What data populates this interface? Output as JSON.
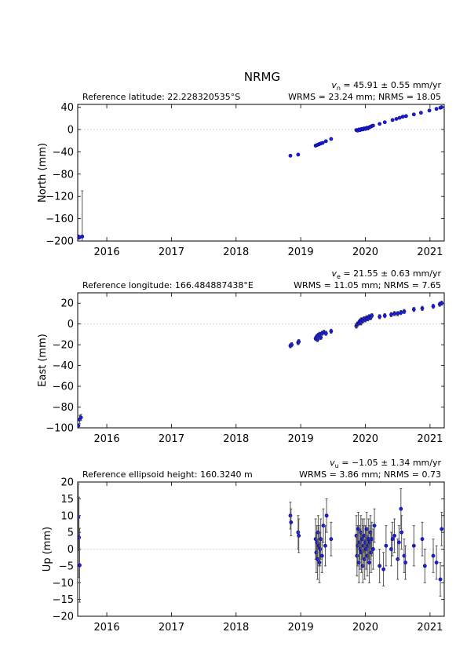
{
  "station": "NRMG",
  "x_ticks": [
    "2016",
    "2017",
    "2018",
    "2019",
    "2020",
    "2021"
  ],
  "colors": {
    "marker_fill": "#1f1fd6",
    "marker_edge": "#00008b",
    "errorbar": "#555555",
    "zero_line": "#cccccc"
  },
  "chart_data": [
    {
      "type": "scatter",
      "component": "north",
      "ylabel": "North (mm)",
      "reference_text": "Reference latitude: 22.228320535°S",
      "velocity": {
        "symbol": "v",
        "sub": "n",
        "text": " = 45.91 ± 0.55 mm/yr"
      },
      "stats_text": "WRMS = 23.24 mm; NRMS = 18.05",
      "ylim": [
        -200,
        45
      ],
      "yticks": [
        40,
        0,
        -40,
        -80,
        -120,
        -160,
        -200
      ],
      "ytick_labels": [
        "40",
        "0",
        "−40",
        "−80",
        "−120",
        "−160",
        "−200"
      ],
      "xlim": [
        2015.55,
        2021.22
      ],
      "grid": false,
      "zero_line": true,
      "points": [
        [
          2015.56,
          -192,
          1
        ],
        [
          2015.57,
          -194,
          1
        ],
        [
          2015.58,
          -193,
          1
        ],
        [
          2015.62,
          -192,
          82
        ],
        [
          2018.84,
          -47,
          1
        ],
        [
          2018.96,
          -45,
          1
        ],
        [
          2019.23,
          -29,
          1
        ],
        [
          2019.25,
          -28,
          1
        ],
        [
          2019.27,
          -27,
          1
        ],
        [
          2019.29,
          -26,
          1
        ],
        [
          2019.31,
          -25,
          1
        ],
        [
          2019.34,
          -24,
          1
        ],
        [
          2019.39,
          -21,
          1
        ],
        [
          2019.47,
          -17,
          1
        ],
        [
          2019.86,
          -1,
          1
        ],
        [
          2019.88,
          -2,
          1
        ],
        [
          2019.9,
          0,
          1
        ],
        [
          2019.92,
          -1,
          1
        ],
        [
          2019.94,
          1,
          1
        ],
        [
          2019.96,
          0,
          1
        ],
        [
          2019.98,
          2,
          1
        ],
        [
          2020.0,
          1,
          1
        ],
        [
          2020.02,
          3,
          1
        ],
        [
          2020.04,
          2,
          1
        ],
        [
          2020.06,
          4,
          1
        ],
        [
          2020.08,
          5,
          1
        ],
        [
          2020.1,
          6,
          1
        ],
        [
          2020.12,
          7,
          1
        ],
        [
          2020.22,
          10,
          1
        ],
        [
          2020.3,
          13,
          1
        ],
        [
          2020.42,
          17,
          1
        ],
        [
          2020.48,
          19,
          1
        ],
        [
          2020.53,
          21,
          1
        ],
        [
          2020.58,
          23,
          1
        ],
        [
          2020.63,
          24,
          1
        ],
        [
          2020.75,
          27,
          1
        ],
        [
          2020.86,
          30,
          1
        ],
        [
          2020.99,
          34,
          1
        ],
        [
          2021.1,
          37,
          1
        ],
        [
          2021.16,
          39,
          1
        ],
        [
          2021.18,
          40,
          1
        ]
      ]
    },
    {
      "type": "scatter",
      "component": "east",
      "ylabel": "East (mm)",
      "reference_text": "Reference longitude: 166.484887438°E",
      "velocity": {
        "symbol": "v",
        "sub": "e",
        "text": " = 21.55 ± 0.63 mm/yr"
      },
      "stats_text": "WRMS = 11.05 mm; NRMS = 7.65",
      "ylim": [
        -100,
        30
      ],
      "yticks": [
        20,
        0,
        -20,
        -40,
        -60,
        -80,
        -100
      ],
      "ytick_labels": [
        "20",
        "0",
        "−20",
        "−40",
        "−60",
        "−80",
        "−100"
      ],
      "xlim": [
        2015.55,
        2021.22
      ],
      "grid": false,
      "zero_line": true,
      "points": [
        [
          2015.56,
          -98,
          2
        ],
        [
          2015.58,
          -92,
          4
        ],
        [
          2015.6,
          -90,
          3
        ],
        [
          2018.84,
          -21,
          2
        ],
        [
          2018.86,
          -20,
          2
        ],
        [
          2018.96,
          -18,
          2
        ],
        [
          2018.97,
          -17,
          2
        ],
        [
          2019.23,
          -14,
          2
        ],
        [
          2019.25,
          -12,
          2
        ],
        [
          2019.26,
          -15,
          2
        ],
        [
          2019.27,
          -11,
          2
        ],
        [
          2019.29,
          -10,
          2
        ],
        [
          2019.31,
          -13,
          2
        ],
        [
          2019.33,
          -9,
          2
        ],
        [
          2019.36,
          -8,
          2
        ],
        [
          2019.39,
          -9,
          2
        ],
        [
          2019.47,
          -7,
          2
        ],
        [
          2019.86,
          -2,
          2
        ],
        [
          2019.87,
          -1,
          2
        ],
        [
          2019.88,
          0,
          2
        ],
        [
          2019.9,
          1,
          2
        ],
        [
          2019.91,
          2,
          2
        ],
        [
          2019.92,
          3,
          2
        ],
        [
          2019.93,
          1,
          2
        ],
        [
          2019.94,
          4,
          2
        ],
        [
          2019.96,
          3,
          2
        ],
        [
          2019.98,
          5,
          2
        ],
        [
          2020.0,
          4,
          2
        ],
        [
          2020.02,
          6,
          2
        ],
        [
          2020.04,
          5,
          2
        ],
        [
          2020.06,
          7,
          2
        ],
        [
          2020.08,
          6,
          2
        ],
        [
          2020.1,
          8,
          2
        ],
        [
          2020.22,
          7,
          2
        ],
        [
          2020.3,
          8,
          2
        ],
        [
          2020.4,
          9,
          2
        ],
        [
          2020.45,
          10,
          2
        ],
        [
          2020.5,
          10,
          2
        ],
        [
          2020.55,
          11,
          2
        ],
        [
          2020.6,
          12,
          2
        ],
        [
          2020.75,
          14,
          2
        ],
        [
          2020.88,
          15,
          2
        ],
        [
          2021.05,
          17,
          2
        ],
        [
          2021.15,
          19,
          2
        ],
        [
          2021.18,
          20,
          2
        ]
      ]
    },
    {
      "type": "scatter",
      "component": "up",
      "ylabel": "Up (mm)",
      "reference_text": "Reference ellipsoid height: 160.3240 m",
      "velocity": {
        "symbol": "v",
        "sub": "u",
        "text": " = −1.05 ± 1.34 mm/yr"
      },
      "stats_text": "WRMS = 3.86 mm; NRMS = 0.73",
      "ylim": [
        -20,
        20
      ],
      "yticks": [
        20,
        15,
        10,
        5,
        0,
        -5,
        -10,
        -15,
        -20
      ],
      "ytick_labels": [
        "20",
        "15",
        "10",
        "5",
        "0",
        "−5",
        "−10",
        "−15",
        "−20"
      ],
      "xlim": [
        2015.55,
        2021.22
      ],
      "grid": false,
      "zero_line": true,
      "points": [
        [
          2015.56,
          9.5,
          10
        ],
        [
          2015.57,
          3.5,
          12
        ],
        [
          2015.58,
          -4.8,
          11
        ],
        [
          2018.84,
          10,
          4
        ],
        [
          2018.85,
          8,
          4
        ],
        [
          2018.96,
          5,
          5
        ],
        [
          2018.97,
          4,
          5
        ],
        [
          2019.23,
          3,
          6
        ],
        [
          2019.24,
          -1,
          6
        ],
        [
          2019.25,
          2,
          5
        ],
        [
          2019.26,
          -3,
          6
        ],
        [
          2019.27,
          5,
          5
        ],
        [
          2019.28,
          1,
          6
        ],
        [
          2019.29,
          -4,
          6
        ],
        [
          2019.3,
          0,
          5
        ],
        [
          2019.31,
          3,
          6
        ],
        [
          2019.33,
          -2,
          5
        ],
        [
          2019.35,
          7,
          5
        ],
        [
          2019.38,
          1,
          6
        ],
        [
          2019.4,
          10,
          5
        ],
        [
          2019.47,
          3,
          5
        ],
        [
          2019.86,
          4,
          6
        ],
        [
          2019.87,
          -2,
          6
        ],
        [
          2019.88,
          1,
          6
        ],
        [
          2019.89,
          6,
          5
        ],
        [
          2019.9,
          -4,
          6
        ],
        [
          2019.91,
          2,
          5
        ],
        [
          2019.92,
          0,
          6
        ],
        [
          2019.93,
          5,
          5
        ],
        [
          2019.94,
          -1,
          6
        ],
        [
          2019.95,
          3,
          6
        ],
        [
          2019.96,
          -5,
          5
        ],
        [
          2019.97,
          1,
          6
        ],
        [
          2019.98,
          4,
          5
        ],
        [
          2019.99,
          -3,
          6
        ],
        [
          2020.0,
          2,
          5
        ],
        [
          2020.01,
          0,
          6
        ],
        [
          2020.02,
          6,
          5
        ],
        [
          2020.03,
          -2,
          6
        ],
        [
          2020.04,
          1,
          5
        ],
        [
          2020.05,
          3,
          6
        ],
        [
          2020.06,
          -4,
          6
        ],
        [
          2020.07,
          2,
          5
        ],
        [
          2020.08,
          5,
          5
        ],
        [
          2020.09,
          -1,
          6
        ],
        [
          2020.1,
          3,
          5
        ],
        [
          2020.12,
          0,
          6
        ],
        [
          2020.14,
          7,
          5
        ],
        [
          2020.22,
          -5,
          5
        ],
        [
          2020.28,
          -6,
          5
        ],
        [
          2020.32,
          1,
          6
        ],
        [
          2020.4,
          0,
          5
        ],
        [
          2020.42,
          3,
          5
        ],
        [
          2020.45,
          4,
          5
        ],
        [
          2020.5,
          -3,
          6
        ],
        [
          2020.52,
          2,
          5
        ],
        [
          2020.55,
          12,
          6
        ],
        [
          2020.56,
          5,
          5
        ],
        [
          2020.6,
          -2,
          5
        ],
        [
          2020.62,
          -4,
          5
        ],
        [
          2020.75,
          1,
          6
        ],
        [
          2020.88,
          3,
          5
        ],
        [
          2020.92,
          -5,
          5
        ],
        [
          2021.05,
          -2,
          5
        ],
        [
          2021.1,
          -4,
          5
        ],
        [
          2021.16,
          -9,
          5
        ],
        [
          2021.18,
          6,
          5
        ]
      ]
    }
  ]
}
